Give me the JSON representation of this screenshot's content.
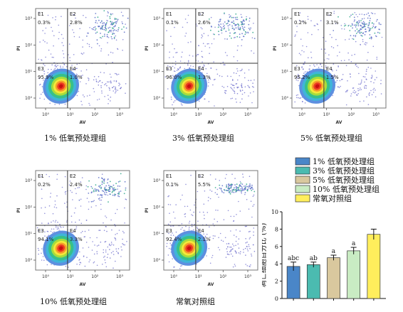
{
  "chart_data": [
    {
      "type": "scatter",
      "caption": "1% 低氧预处理组",
      "xlabel": "AV",
      "ylabel": "PI",
      "quadrants": [
        {
          "name": "E1",
          "percent": "0.3%"
        },
        {
          "name": "E2",
          "percent": "2.8%"
        },
        {
          "name": "E3",
          "percent": "95.9%"
        },
        {
          "name": "E4",
          "percent": "1.0%"
        }
      ],
      "ticks_x": [
        "10⁰",
        "10¹",
        "10²",
        "10³"
      ],
      "ticks_y": [
        "10⁰",
        "10¹",
        "10²",
        "10³"
      ]
    },
    {
      "type": "scatter",
      "caption": "3% 低氧预处理组",
      "xlabel": "AV",
      "ylabel": "PI",
      "quadrants": [
        {
          "name": "E1",
          "percent": "0.1%"
        },
        {
          "name": "E2",
          "percent": "2.6%"
        },
        {
          "name": "E3",
          "percent": "96.0%"
        },
        {
          "name": "E4",
          "percent": "1.3%"
        }
      ],
      "ticks_x": [
        "10⁰",
        "10¹",
        "10²",
        "10³"
      ],
      "ticks_y": [
        "10⁰",
        "10¹",
        "10²",
        "10³"
      ]
    },
    {
      "type": "scatter",
      "caption": "5% 低氧预处理组",
      "xlabel": "AV",
      "ylabel": "PI",
      "quadrants": [
        {
          "name": "E1",
          "percent": "0.2%"
        },
        {
          "name": "E2",
          "percent": "3.1%"
        },
        {
          "name": "E3",
          "percent": "95.2%"
        },
        {
          "name": "E4",
          "percent": "1.5%"
        }
      ],
      "ticks_x": [
        "10⁰",
        "10¹",
        "10²",
        "10³"
      ],
      "ticks_y": [
        "10⁰",
        "10¹",
        "10²",
        "10³"
      ]
    },
    {
      "type": "scatter",
      "caption": "10% 低氧预处理组",
      "xlabel": "AV",
      "ylabel": "PI",
      "quadrants": [
        {
          "name": "E1",
          "percent": "0.2%"
        },
        {
          "name": "E2",
          "percent": "2.4%"
        },
        {
          "name": "E3",
          "percent": "94.1%"
        },
        {
          "name": "E4",
          "percent": "3.3%"
        }
      ],
      "ticks_x": [
        "10⁰",
        "10¹",
        "10²",
        "10³"
      ],
      "ticks_y": [
        "10⁰",
        "10¹",
        "10²",
        "10³"
      ]
    },
    {
      "type": "scatter",
      "caption": "常氧对照组",
      "xlabel": "AV",
      "ylabel": "PI",
      "quadrants": [
        {
          "name": "E1",
          "percent": "0.1%"
        },
        {
          "name": "E2",
          "percent": "5.5%"
        },
        {
          "name": "E3",
          "percent": "92.4%"
        },
        {
          "name": "E4",
          "percent": "2.1%"
        }
      ],
      "ticks_x": [
        "10⁰",
        "10¹",
        "10²",
        "10³"
      ],
      "ticks_y": [
        "10⁰",
        "10¹",
        "10²",
        "10³"
      ]
    },
    {
      "type": "bar",
      "ylabel": "凋亡细胞百分比 (%)",
      "ylim": [
        0,
        10
      ],
      "yticks": [
        0,
        2,
        4,
        6,
        8,
        10
      ],
      "categories": [
        "1% 低氧预处理组",
        "3% 低氧预处理组",
        "5% 低氧预处理组",
        "10% 低氧预处理组",
        "常氧对照组"
      ],
      "values": [
        3.7,
        3.9,
        4.7,
        5.5,
        7.4
      ],
      "errors": [
        0.5,
        0.3,
        0.3,
        0.4,
        0.6
      ],
      "sig_labels": [
        "abc",
        "ab",
        "a",
        "a",
        ""
      ],
      "colors": [
        "#4a86c8",
        "#4bbbb0",
        "#d9c89e",
        "#c9ecc3",
        "#ffee5c"
      ],
      "legend_position": "top",
      "grid": false
    }
  ]
}
